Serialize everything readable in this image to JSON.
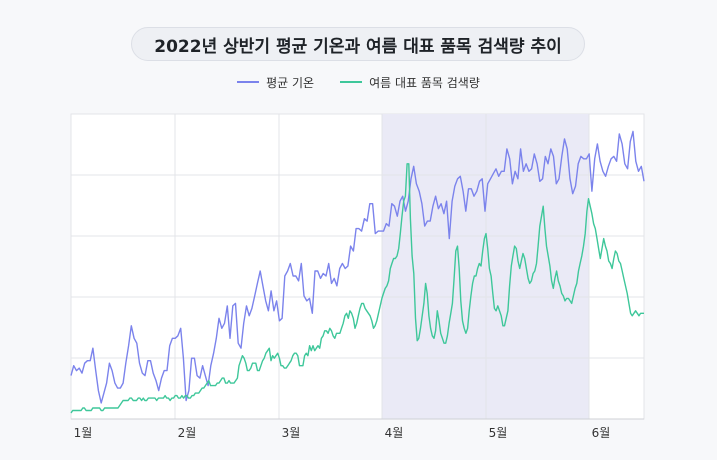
{
  "colors": {
    "temperature": "#7b83ec",
    "search": "#3ec79a",
    "highlight": "#eaeaf6",
    "grid": "#e3e4e8",
    "plot_bg": "#ffffff"
  },
  "chart_data": {
    "type": "line",
    "title": "2022년 상반기 평균 기온과 여름 대표 품목 검색량 추이",
    "xlabel": "",
    "ylabel": "",
    "x_ticks": [
      "1월",
      "2월",
      "3월",
      "4월",
      "5월",
      "6월"
    ],
    "highlight_range": [
      "4월",
      "6월"
    ],
    "grid": true,
    "y_tick_labels": false,
    "legend_position": "top-center",
    "series": [
      {
        "name": "평균 기온",
        "values": [
          15,
          19,
          17,
          18,
          16,
          20,
          21,
          21,
          26,
          17,
          9,
          4,
          8,
          12,
          20,
          17,
          12,
          10,
          10,
          12,
          20,
          27,
          35,
          30,
          28,
          20,
          16,
          15,
          21,
          21,
          16,
          13,
          9,
          14,
          17,
          17,
          27,
          30,
          30,
          31,
          34,
          22,
          5,
          9,
          22,
          22,
          15,
          14,
          19,
          15,
          11,
          19,
          24,
          30,
          38,
          34,
          36,
          43,
          30,
          43,
          44,
          28,
          26,
          36,
          43,
          39,
          42,
          47,
          52,
          57,
          51,
          45,
          41,
          49,
          41,
          45,
          37,
          38,
          55,
          57,
          60,
          55,
          55,
          53,
          60,
          47,
          45,
          46,
          40,
          57,
          57,
          54,
          56,
          55,
          60,
          52,
          54,
          51,
          58,
          60,
          58,
          59,
          67,
          65,
          74,
          74,
          73,
          78,
          77,
          84,
          84,
          72,
          73,
          73,
          73,
          76,
          75,
          84,
          83,
          79,
          85,
          87,
          81,
          85,
          94,
          99,
          92,
          89,
          84,
          75,
          77,
          77,
          83,
          87,
          82,
          84,
          80,
          85,
          70,
          85,
          91,
          94,
          95,
          89,
          81,
          90,
          90,
          87,
          89,
          93,
          94,
          81,
          92,
          94,
          96,
          98,
          95,
          97,
          97,
          106,
          102,
          92,
          97,
          94,
          106,
          97,
          100,
          97,
          98,
          104,
          100,
          93,
          94,
          103,
          100,
          106,
          103,
          92,
          94,
          103,
          110,
          106,
          94,
          88,
          91,
          100,
          103,
          102,
          102,
          104,
          89,
          102,
          108,
          101,
          97,
          95,
          99,
          102,
          103,
          101,
          112,
          108,
          100,
          98,
          109,
          113,
          101,
          97,
          99,
          93
        ]
      },
      {
        "name": "여름 대표 품목 검색량",
        "values": [
          0,
          1,
          1,
          1,
          1,
          1,
          1,
          2,
          2,
          1,
          1,
          1,
          1,
          2,
          2,
          2,
          2,
          2,
          1,
          1,
          2,
          2,
          2,
          2,
          2,
          2,
          2,
          2,
          2,
          3,
          4,
          5,
          5,
          5,
          5,
          6,
          6,
          5,
          5,
          5,
          6,
          6,
          5,
          6,
          5,
          5,
          6,
          6,
          6,
          6,
          6,
          5,
          6,
          6,
          6,
          6,
          7,
          6,
          6,
          5,
          6,
          6,
          7,
          7,
          6,
          6,
          7,
          6,
          7,
          7,
          6,
          6,
          7,
          7,
          8,
          8,
          8,
          9,
          10,
          10,
          11,
          12,
          13,
          11,
          11,
          11,
          11,
          12,
          12,
          13,
          14,
          14,
          12,
          12,
          13,
          12,
          12,
          12,
          13,
          14,
          19,
          21,
          23,
          22,
          20,
          17,
          17,
          18,
          20,
          20,
          20,
          17,
          17,
          19,
          21,
          22,
          24,
          25,
          26,
          21,
          23,
          22,
          23,
          24,
          22,
          19,
          19,
          18,
          18,
          19,
          20,
          21,
          23,
          24,
          24,
          23,
          19,
          19,
          19,
          23,
          24,
          23,
          27,
          25,
          27,
          25,
          26,
          27,
          26,
          30,
          31,
          33,
          33,
          32,
          34,
          33,
          31,
          30,
          32,
          32,
          32,
          34,
          36,
          39,
          40,
          38,
          41,
          40,
          38,
          34,
          36,
          39,
          42,
          44,
          44,
          42,
          41,
          40,
          39,
          37,
          34,
          35,
          37,
          40,
          43,
          46,
          48,
          50,
          51,
          53,
          58,
          60,
          62,
          62,
          63,
          66,
          72,
          79,
          85,
          87,
          100,
          100,
          78,
          63,
          56,
          38,
          29,
          30,
          34,
          39,
          44,
          52,
          48,
          39,
          34,
          31,
          30,
          33,
          41,
          37,
          32,
          30,
          28,
          28,
          31,
          36,
          40,
          44,
          54,
          65,
          67,
          58,
          45,
          37,
          34,
          32,
          34,
          41,
          47,
          52,
          55,
          55,
          58,
          60,
          59,
          65,
          70,
          72,
          66,
          58,
          55,
          48,
          42,
          41,
          43,
          41,
          39,
          35,
          35,
          38,
          41,
          51,
          59,
          63,
          67,
          66,
          61,
          58,
          61,
          64,
          62,
          58,
          54,
          52,
          53,
          56,
          57,
          60,
          67,
          75,
          79,
          83,
          74,
          67,
          63,
          59,
          53,
          50,
          54,
          57,
          53,
          51,
          48,
          47,
          45,
          46,
          46,
          45,
          44,
          47,
          50,
          52,
          57,
          60,
          63,
          67,
          72,
          81,
          86,
          83,
          80,
          76,
          74,
          70,
          66,
          62,
          66,
          70,
          67,
          65,
          61,
          60,
          58,
          62,
          65,
          64,
          61,
          60,
          57,
          54,
          51,
          48,
          44,
          40,
          39,
          40,
          41,
          40,
          39,
          40,
          40,
          40
        ]
      }
    ]
  }
}
